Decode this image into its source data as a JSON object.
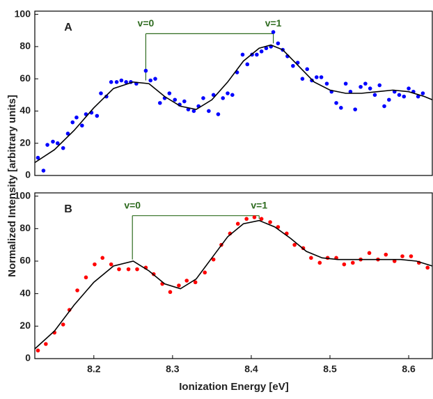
{
  "chart_data": [
    {
      "type": "scatter",
      "panel_label": "A",
      "ylabel": "Normalized Intensity [arbitrary units]",
      "xlim": [
        8.125,
        8.63
      ],
      "ylim": [
        0,
        102
      ],
      "yticks": [
        0,
        20,
        40,
        60,
        80,
        100
      ],
      "points": {
        "color": "#0000ff",
        "x": [
          8.129,
          8.136,
          8.141,
          8.148,
          8.154,
          8.161,
          8.167,
          8.173,
          8.178,
          8.185,
          8.19,
          8.197,
          8.204,
          8.209,
          8.216,
          8.222,
          8.229,
          8.235,
          8.241,
          8.247,
          8.254,
          8.266,
          8.272,
          8.278,
          8.284,
          8.29,
          8.296,
          8.303,
          8.309,
          8.315,
          8.32,
          8.327,
          8.333,
          8.339,
          8.346,
          8.352,
          8.358,
          8.364,
          8.37,
          8.376,
          8.382,
          8.389,
          8.395,
          8.401,
          8.407,
          8.413,
          8.419,
          8.425,
          8.428,
          8.434,
          8.44,
          8.446,
          8.453,
          8.459,
          8.465,
          8.471,
          8.477,
          8.483,
          8.489,
          8.496,
          8.502,
          8.508,
          8.514,
          8.52,
          8.526,
          8.532,
          8.539,
          8.545,
          8.551,
          8.557,
          8.563,
          8.569,
          8.575,
          8.582,
          8.588,
          8.594,
          8.6,
          8.606,
          8.612,
          8.618
        ],
        "values": [
          11,
          3,
          19,
          21,
          20,
          17,
          26,
          33,
          36,
          31,
          38,
          39,
          37,
          51,
          49,
          58,
          58,
          59,
          58,
          58,
          57,
          65,
          59,
          60,
          45,
          48,
          51,
          47,
          44,
          46,
          41,
          40,
          43,
          48,
          40,
          50,
          38,
          48,
          51,
          50,
          64,
          75,
          69,
          75,
          75,
          77,
          79,
          80,
          89,
          82,
          78,
          74,
          68,
          70,
          60,
          66,
          59,
          61,
          61,
          57,
          52,
          45,
          42,
          57,
          52,
          41,
          55,
          57,
          54,
          50,
          56,
          43,
          47,
          52,
          50,
          49,
          54,
          52,
          49,
          51
        ]
      },
      "fit": {
        "color": "#000000",
        "x": [
          8.125,
          8.15,
          8.175,
          8.2,
          8.225,
          8.25,
          8.27,
          8.29,
          8.31,
          8.33,
          8.35,
          8.37,
          8.39,
          8.41,
          8.425,
          8.44,
          8.46,
          8.48,
          8.5,
          8.52,
          8.54,
          8.56,
          8.58,
          8.6,
          8.62,
          8.63
        ],
        "values": [
          8,
          16,
          28,
          42,
          54,
          58,
          57,
          49,
          43,
          41,
          47,
          58,
          71,
          79,
          81,
          78,
          68,
          58,
          53,
          51,
          51,
          52,
          53,
          52,
          49,
          47
        ]
      },
      "annotation_color": "#2e6b1f",
      "annotations": [
        {
          "text": "v=0",
          "x": 8.266,
          "y_from": 59,
          "y_to": 88
        },
        {
          "text": "v=1",
          "x": 8.428,
          "y_from": 82,
          "y_to": 88
        }
      ]
    },
    {
      "type": "scatter",
      "panel_label": "B",
      "xlabel": "Ionization Energy [eV]",
      "xlim": [
        8.125,
        8.63
      ],
      "ylim": [
        0,
        102
      ],
      "yticks": [
        0,
        20,
        40,
        60,
        80,
        100
      ],
      "xticks": [
        8.2,
        8.3,
        8.4,
        8.5,
        8.6
      ],
      "points": {
        "color": "#ff0000",
        "x": [
          8.129,
          8.139,
          8.15,
          8.161,
          8.169,
          8.179,
          8.19,
          8.201,
          8.211,
          8.222,
          8.232,
          8.244,
          8.255,
          8.266,
          8.276,
          8.287,
          8.297,
          8.308,
          8.318,
          8.329,
          8.341,
          8.352,
          8.362,
          8.373,
          8.383,
          8.394,
          8.404,
          8.413,
          8.424,
          8.434,
          8.445,
          8.455,
          8.466,
          8.476,
          8.487,
          8.497,
          8.508,
          8.518,
          8.529,
          8.539,
          8.55,
          8.561,
          8.571,
          8.582,
          8.592,
          8.603,
          8.613,
          8.624
        ],
        "values": [
          5,
          9,
          16,
          21,
          30,
          42,
          50,
          58,
          62,
          58,
          55,
          55,
          55,
          56,
          52,
          46,
          41,
          45,
          48,
          47,
          53,
          61,
          70,
          77,
          83,
          86,
          87,
          86,
          84,
          81,
          77,
          70,
          68,
          62,
          59,
          62,
          62,
          58,
          59,
          61,
          65,
          61,
          64,
          60,
          63,
          63,
          59,
          56
        ]
      },
      "fit": {
        "color": "#000000",
        "x": [
          8.125,
          8.15,
          8.175,
          8.2,
          8.225,
          8.25,
          8.27,
          8.29,
          8.31,
          8.33,
          8.35,
          8.37,
          8.39,
          8.41,
          8.43,
          8.45,
          8.47,
          8.49,
          8.51,
          8.53,
          8.55,
          8.57,
          8.59,
          8.61,
          8.63
        ],
        "values": [
          6,
          17,
          33,
          47,
          57,
          60,
          54,
          46,
          43,
          49,
          62,
          75,
          83,
          85,
          81,
          74,
          66,
          62,
          61,
          61,
          61,
          61,
          61,
          60,
          57
        ]
      },
      "annotation_color": "#2e6b1f",
      "annotations": [
        {
          "text": "v=0",
          "x": 8.249,
          "y_from": 61,
          "y_to": 88
        },
        {
          "text": "v=1",
          "x": 8.41,
          "y_from": 86,
          "y_to": 88
        }
      ]
    }
  ]
}
